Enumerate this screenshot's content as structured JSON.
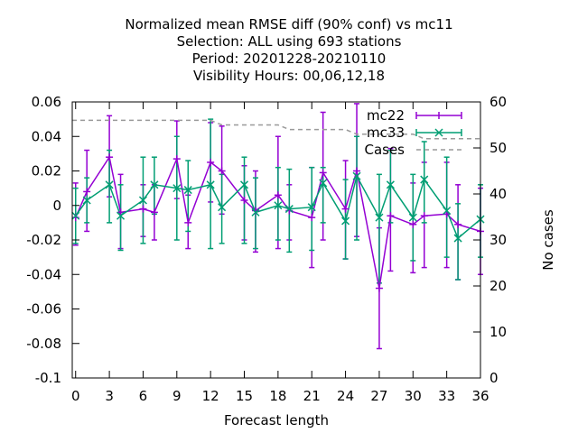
{
  "chart_data": {
    "type": "line",
    "title": [
      "Normalized mean RMSE diff (90% conf) vs mc11",
      "Selection: ALL using   693 stations",
      "Period: 20201228-20210110",
      "Visibility   Hours:  00,06,12,18"
    ],
    "xlabel": "Forecast length",
    "ylabel": "",
    "y2label": "No cases",
    "xlim": [
      -0.3,
      36
    ],
    "ylim": [
      -0.1,
      0.06
    ],
    "y2lim": [
      0,
      60
    ],
    "xticks": [
      0,
      3,
      6,
      9,
      12,
      15,
      18,
      21,
      24,
      27,
      30,
      33,
      36
    ],
    "yticks": [
      -0.1,
      -0.08,
      -0.06,
      -0.04,
      -0.02,
      0,
      0.02,
      0.04,
      0.06
    ],
    "ytick_labels": [
      "-0.1",
      "-0.08",
      "-0.06",
      "-0.04",
      "-0.02",
      "0",
      "0.02",
      "0.04",
      "0.06"
    ],
    "y2ticks": [
      0,
      10,
      20,
      30,
      40,
      50,
      60
    ],
    "x": [
      0,
      1,
      3,
      4,
      6,
      7,
      9,
      10,
      12,
      13,
      15,
      16,
      18,
      19,
      21,
      22,
      24,
      25,
      27,
      28,
      30,
      31,
      33,
      34,
      36
    ],
    "series": [
      {
        "name": "mc22",
        "color": "#9400d3",
        "axis": "y",
        "values": [
          -0.007,
          0.008,
          0.028,
          -0.004,
          -0.002,
          -0.004,
          0.027,
          -0.01,
          0.025,
          0.02,
          0.003,
          -0.003,
          0.006,
          -0.003,
          -0.007,
          0.019,
          -0.002,
          0.02,
          -0.048,
          -0.006,
          -0.011,
          -0.006,
          -0.005,
          -0.011,
          -0.015
        ],
        "lower": [
          -0.023,
          -0.015,
          0.005,
          -0.025,
          -0.018,
          -0.02,
          0.004,
          -0.025,
          0.002,
          -0.005,
          -0.02,
          -0.027,
          -0.025,
          -0.02,
          -0.036,
          -0.02,
          -0.031,
          -0.018,
          -0.083,
          -0.038,
          -0.039,
          -0.036,
          -0.036,
          -0.043,
          -0.04
        ],
        "upper": [
          0.013,
          0.032,
          0.052,
          0.018,
          0.012,
          0.012,
          0.049,
          0.006,
          0.048,
          0.046,
          0.023,
          0.02,
          0.04,
          0.012,
          0.022,
          0.054,
          0.026,
          0.059,
          -0.013,
          0.033,
          0.013,
          0.025,
          0.025,
          0.012,
          0.01
        ]
      },
      {
        "name": "mc33",
        "color": "#009e73",
        "axis": "y",
        "values": [
          -0.006,
          0.003,
          0.012,
          -0.006,
          0.003,
          0.012,
          0.01,
          0.009,
          0.012,
          -0.001,
          0.012,
          -0.004,
          0.0,
          -0.002,
          -0.001,
          0.013,
          -0.009,
          0.017,
          -0.007,
          0.012,
          -0.007,
          0.015,
          -0.003,
          -0.019,
          -0.008
        ],
        "lower": [
          -0.022,
          -0.01,
          -0.01,
          -0.026,
          -0.022,
          -0.005,
          -0.02,
          -0.015,
          -0.025,
          -0.022,
          -0.022,
          -0.025,
          -0.02,
          -0.027,
          -0.026,
          -0.01,
          -0.031,
          -0.02,
          -0.045,
          -0.01,
          -0.032,
          -0.01,
          -0.03,
          -0.043,
          -0.03
        ],
        "upper": [
          0.01,
          0.016,
          0.032,
          0.012,
          0.028,
          0.028,
          0.04,
          0.026,
          0.05,
          0.018,
          0.028,
          0.016,
          0.022,
          0.021,
          0.022,
          0.022,
          0.015,
          0.04,
          0.018,
          0.032,
          0.018,
          0.037,
          0.028,
          0.001,
          0.012
        ]
      },
      {
        "name": "Cases",
        "color": "#9a9a9a",
        "axis": "y2",
        "dashed": true,
        "x": [
          -0.3,
          12,
          13,
          18,
          19,
          24,
          25,
          30,
          31,
          36
        ],
        "values": [
          56,
          56,
          55,
          55,
          54,
          54,
          53,
          53,
          52,
          52
        ]
      }
    ],
    "legend_position": "top-right",
    "grid": false
  }
}
